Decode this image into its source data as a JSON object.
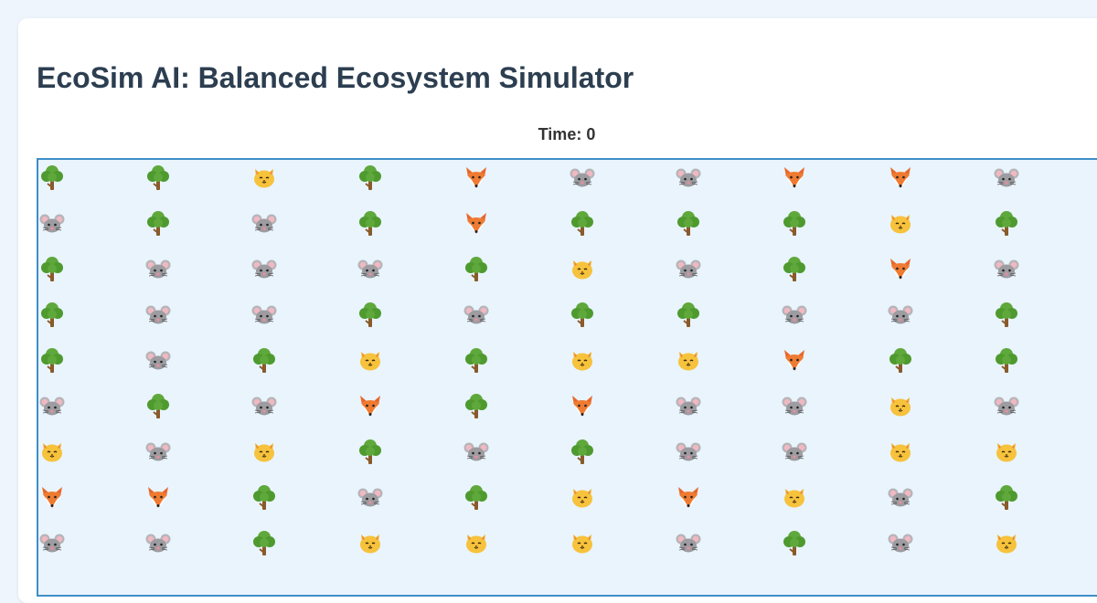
{
  "title": "EcoSim AI: Balanced Ecosystem Simulator",
  "time": {
    "label": "Time:",
    "value": 0
  },
  "legend_icons": {
    "T": "tree-icon",
    "M": "mouse-icon",
    "C": "cat-icon",
    "F": "fox-icon"
  },
  "grid": {
    "columns": 10,
    "rows": [
      [
        "T",
        "T",
        "C",
        "T",
        "F",
        "M",
        "M",
        "F",
        "F",
        "M"
      ],
      [
        "M",
        "T",
        "M",
        "T",
        "F",
        "T",
        "T",
        "T",
        "C",
        "T"
      ],
      [
        "T",
        "M",
        "M",
        "M",
        "T",
        "C",
        "M",
        "T",
        "F",
        "M"
      ],
      [
        "T",
        "M",
        "M",
        "T",
        "M",
        "T",
        "T",
        "M",
        "M",
        "T"
      ],
      [
        "T",
        "M",
        "T",
        "C",
        "T",
        "C",
        "C",
        "F",
        "T",
        "T"
      ],
      [
        "M",
        "T",
        "M",
        "F",
        "T",
        "F",
        "M",
        "M",
        "C",
        "M"
      ],
      [
        "C",
        "M",
        "C",
        "T",
        "M",
        "T",
        "M",
        "M",
        "C",
        "C"
      ],
      [
        "F",
        "F",
        "T",
        "M",
        "T",
        "C",
        "F",
        "C",
        "M",
        "T"
      ],
      [
        "M",
        "M",
        "T",
        "C",
        "C",
        "C",
        "M",
        "T",
        "M",
        "C"
      ]
    ]
  }
}
